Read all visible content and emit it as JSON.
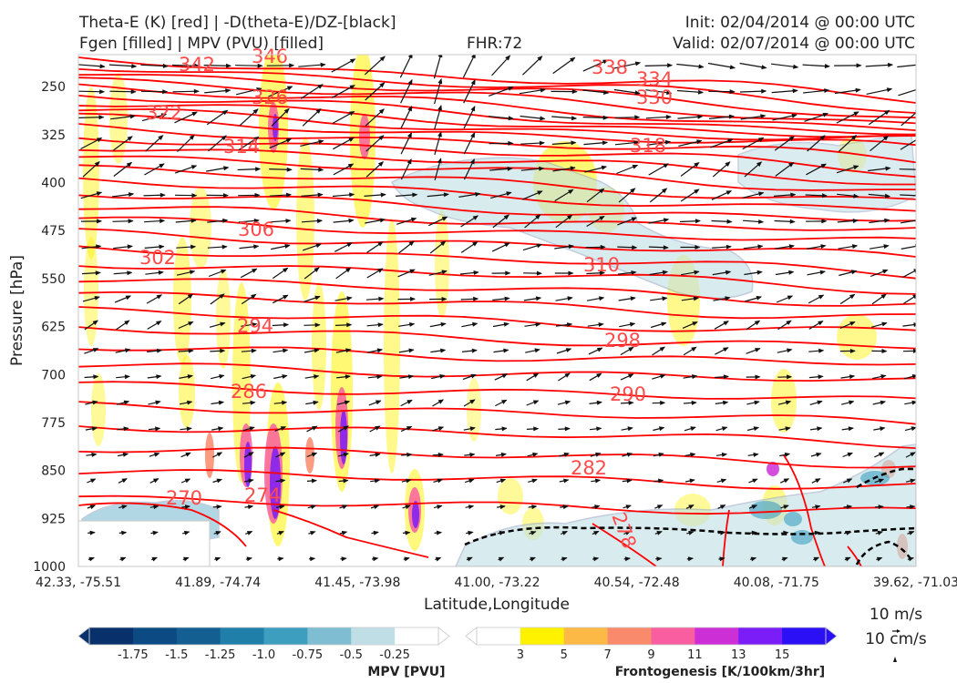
{
  "header": {
    "title_line1": "Theta-E (K) [red] | -D(theta-E)/DZ-[black]",
    "title_line2": "Fgen [filled] | MPV (PVU) [filled]",
    "fhr": "FHR:72",
    "init": "Init: 02/04/2014 @ 00:00 UTC",
    "valid": "Valid: 02/07/2014 @ 00:00 UTC"
  },
  "chart_data": {
    "type": "contour-cross-section",
    "xlabel": "Latitude,Longitude",
    "ylabel": "Pressure [hPa]",
    "x_ticks": [
      "42.33, -75.51",
      "41.89, -74.74",
      "41.45, -73.98",
      "41.00, -73.22",
      "40.54, -72.48",
      "40.08, -71.75",
      "39.62, -71.03"
    ],
    "y_ticks": [
      "250",
      "325",
      "400",
      "475",
      "550",
      "625",
      "700",
      "775",
      "850",
      "925",
      "1000"
    ],
    "ylim": [
      1000,
      200
    ],
    "theta_e_contour_labels": [
      "342",
      "346",
      "338",
      "334",
      "330",
      "326",
      "322",
      "318",
      "314",
      "310",
      "306",
      "302",
      "298",
      "294",
      "290",
      "286",
      "282",
      "278",
      "274",
      "270"
    ],
    "colors": {
      "theta_e": "#ff0000",
      "theta_e_label": "#ff4a4a",
      "d_theta_e_dz": "#000000",
      "wind_vectors": "#111111",
      "mpv_outline": "#9aabc8"
    },
    "mpv_colorbar": {
      "label": "MPV [PVU]",
      "ticks": [
        "-1.75",
        "-1.5",
        "-1.25",
        "-1.0",
        "-0.75",
        "-0.5",
        "-0.25"
      ],
      "colors": [
        "#08306b",
        "#0b4a82",
        "#135f92",
        "#1f7fa8",
        "#3d9ebf",
        "#7fbdd3",
        "#bfdee6",
        "#ffffff"
      ]
    },
    "fgen_colorbar": {
      "label": "Frontogenesis [K/100km/3hr]",
      "ticks": [
        "3",
        "5",
        "7",
        "9",
        "11",
        "13",
        "15"
      ],
      "colors": [
        "#ffffff",
        "#fff200",
        "#fdb945",
        "#fa8a6c",
        "#f95fa0",
        "#cc2fd6",
        "#7b1df7",
        "#2b10f5"
      ]
    },
    "reference_vectors": {
      "horizontal": "10 m/s",
      "vertical": "10 cm/s"
    }
  }
}
